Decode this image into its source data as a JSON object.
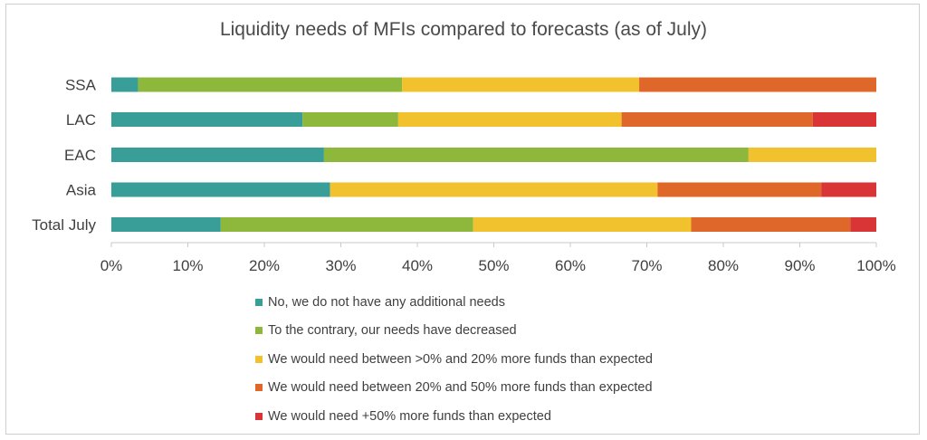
{
  "chart_data": {
    "type": "bar",
    "orientation": "horizontal",
    "stacked": true,
    "title": "Liquidity needs of MFIs compared to forecasts (as of July)",
    "categories": [
      "SSA",
      "LAC",
      "EAC",
      "Asia",
      "Total July"
    ],
    "series": [
      {
        "name": "No, we do not have any additional needs",
        "color": "#3a9e98",
        "values": [
          3.5,
          25,
          27.8,
          28.6,
          14.3
        ]
      },
      {
        "name": "To the contrary, our needs have decreased",
        "color": "#8db83b",
        "values": [
          34.5,
          12.5,
          55.5,
          0,
          33
        ]
      },
      {
        "name": "We would need between >0% and 20% more funds than expected",
        "color": "#f2c12e",
        "values": [
          31,
          29.2,
          16.7,
          42.8,
          28.5
        ]
      },
      {
        "name": "We would need between 20% and 50% more funds than expected",
        "color": "#e0672a",
        "values": [
          31,
          25,
          0,
          21.4,
          20.8
        ]
      },
      {
        "name": "We would need +50% more funds than expected",
        "color": "#d93436",
        "values": [
          0,
          8.3,
          0,
          7.2,
          3.4
        ]
      }
    ],
    "xlim": [
      0,
      100
    ],
    "xticks": [
      "0%",
      "10%",
      "20%",
      "30%",
      "40%",
      "50%",
      "60%",
      "70%",
      "80%",
      "90%",
      "100%"
    ],
    "legend_position": "bottom",
    "grid": false
  }
}
